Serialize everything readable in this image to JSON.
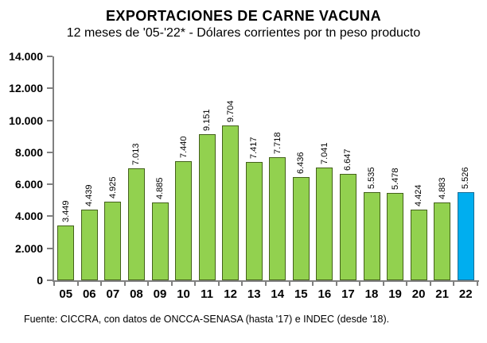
{
  "chart_data": {
    "type": "bar",
    "title": "EXPORTACIONES DE CARNE VACUNA",
    "subtitle": "12 meses de '05-'22* - Dólares corrientes por tn peso producto",
    "source": "Fuente: CICCRA, con datos de ONCCA-SENASA (hasta '17) e INDEC (desde '18).",
    "categories": [
      "05",
      "06",
      "07",
      "08",
      "09",
      "10",
      "11",
      "12",
      "13",
      "14",
      "15",
      "16",
      "17",
      "18",
      "19",
      "20",
      "21",
      "22"
    ],
    "values": [
      3449,
      4439,
      4925,
      7013,
      4885,
      7440,
      9151,
      9704,
      7417,
      7718,
      6436,
      7041,
      6647,
      5535,
      5478,
      4424,
      4883,
      5526
    ],
    "value_labels": [
      "3.449",
      "4.439",
      "4.925",
      "7.013",
      "4.885",
      "7.440",
      "9.151",
      "9.704",
      "7.417",
      "7.718",
      "6.436",
      "7.041",
      "6.647",
      "5.535",
      "5.478",
      "4.424",
      "4.883",
      "5.526"
    ],
    "highlight_index": 17,
    "xlabel": "",
    "ylabel": "",
    "ylim": [
      0,
      14000
    ],
    "ytick_interval": 2000,
    "ytick_labels_top_to_bottom": [
      "14.000",
      "12.000",
      "10.000",
      "8.000",
      "6.000",
      "4.000",
      "2.000",
      "0"
    ],
    "grid": false,
    "legend": false,
    "colors": {
      "bar_fill": "#92D14F",
      "bar_border": "#44611B",
      "highlight_fill": "#00AEEF",
      "highlight_border": "#1A6E96",
      "axis": "#808080",
      "text": "#000000"
    }
  }
}
